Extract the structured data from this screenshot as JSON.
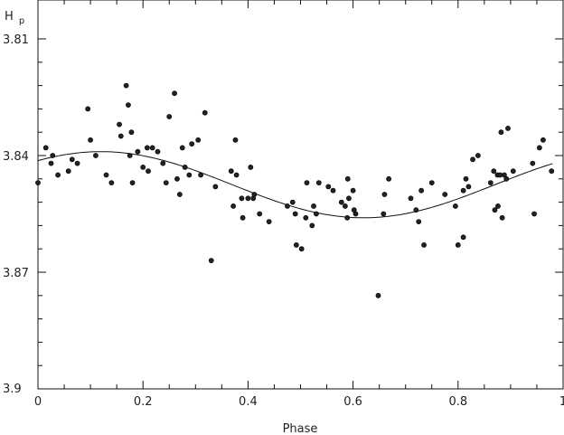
{
  "chart_data": {
    "type": "scatter",
    "title": "",
    "xlabel": "Phase",
    "ylabel": "H",
    "ylabel_sub": "p",
    "xlim": [
      0,
      1
    ],
    "ylim": [
      3.9,
      3.8
    ],
    "y_inverted": true,
    "grid": false,
    "xticks": [
      0,
      0.2,
      0.4,
      0.6,
      0.8,
      1
    ],
    "xtick_labels": [
      "0",
      "0.2",
      "0.4",
      "0.6",
      "0.8",
      "1"
    ],
    "yticks": [
      3.81,
      3.84,
      3.87,
      3.9
    ],
    "ytick_labels": [
      "3.81",
      "3.84",
      "3.87",
      "3.9"
    ],
    "fit_curve": {
      "kind": "sinusoid",
      "mean": 3.8475,
      "amplitude": 0.0085,
      "x_range": [
        0,
        0.98
      ],
      "max_brightness_phase": 0.12
    },
    "points": [
      [
        0.0,
        3.847
      ],
      [
        0.015,
        3.838
      ],
      [
        0.025,
        3.842
      ],
      [
        0.028,
        3.84
      ],
      [
        0.038,
        3.845
      ],
      [
        0.058,
        3.844
      ],
      [
        0.065,
        3.841
      ],
      [
        0.075,
        3.842
      ],
      [
        0.095,
        3.828
      ],
      [
        0.1,
        3.836
      ],
      [
        0.11,
        3.84
      ],
      [
        0.13,
        3.845
      ],
      [
        0.14,
        3.847
      ],
      [
        0.155,
        3.832
      ],
      [
        0.158,
        3.835
      ],
      [
        0.168,
        3.822
      ],
      [
        0.172,
        3.827
      ],
      [
        0.175,
        3.84
      ],
      [
        0.178,
        3.834
      ],
      [
        0.18,
        3.847
      ],
      [
        0.19,
        3.839
      ],
      [
        0.2,
        3.843
      ],
      [
        0.208,
        3.838
      ],
      [
        0.21,
        3.844
      ],
      [
        0.218,
        3.838
      ],
      [
        0.228,
        3.839
      ],
      [
        0.238,
        3.842
      ],
      [
        0.244,
        3.847
      ],
      [
        0.25,
        3.83
      ],
      [
        0.26,
        3.824
      ],
      [
        0.265,
        3.846
      ],
      [
        0.27,
        3.85
      ],
      [
        0.275,
        3.838
      ],
      [
        0.28,
        3.843
      ],
      [
        0.288,
        3.845
      ],
      [
        0.293,
        3.837
      ],
      [
        0.305,
        3.836
      ],
      [
        0.31,
        3.845
      ],
      [
        0.318,
        3.829
      ],
      [
        0.33,
        3.867
      ],
      [
        0.338,
        3.848
      ],
      [
        0.368,
        3.844
      ],
      [
        0.372,
        3.853
      ],
      [
        0.376,
        3.836
      ],
      [
        0.378,
        3.845
      ],
      [
        0.388,
        3.851
      ],
      [
        0.39,
        3.856
      ],
      [
        0.4,
        3.851
      ],
      [
        0.405,
        3.843
      ],
      [
        0.41,
        3.851
      ],
      [
        0.412,
        3.85
      ],
      [
        0.422,
        3.855
      ],
      [
        0.44,
        3.857
      ],
      [
        0.475,
        3.853
      ],
      [
        0.485,
        3.852
      ],
      [
        0.49,
        3.855
      ],
      [
        0.492,
        3.863
      ],
      [
        0.502,
        3.864
      ],
      [
        0.51,
        3.856
      ],
      [
        0.512,
        3.847
      ],
      [
        0.522,
        3.858
      ],
      [
        0.525,
        3.853
      ],
      [
        0.53,
        3.855
      ],
      [
        0.535,
        3.847
      ],
      [
        0.553,
        3.848
      ],
      [
        0.562,
        3.849
      ],
      [
        0.578,
        3.852
      ],
      [
        0.585,
        3.853
      ],
      [
        0.589,
        3.856
      ],
      [
        0.59,
        3.846
      ],
      [
        0.592,
        3.851
      ],
      [
        0.6,
        3.849
      ],
      [
        0.602,
        3.854
      ],
      [
        0.605,
        3.855
      ],
      [
        0.648,
        3.876
      ],
      [
        0.658,
        3.855
      ],
      [
        0.66,
        3.85
      ],
      [
        0.668,
        3.846
      ],
      [
        0.71,
        3.851
      ],
      [
        0.72,
        3.854
      ],
      [
        0.725,
        3.857
      ],
      [
        0.73,
        3.849
      ],
      [
        0.735,
        3.863
      ],
      [
        0.75,
        3.847
      ],
      [
        0.775,
        3.85
      ],
      [
        0.795,
        3.853
      ],
      [
        0.8,
        3.863
      ],
      [
        0.81,
        3.861
      ],
      [
        0.81,
        3.849
      ],
      [
        0.815,
        3.846
      ],
      [
        0.82,
        3.848
      ],
      [
        0.828,
        3.841
      ],
      [
        0.838,
        3.84
      ],
      [
        0.862,
        3.847
      ],
      [
        0.868,
        3.844
      ],
      [
        0.87,
        3.854
      ],
      [
        0.875,
        3.845
      ],
      [
        0.876,
        3.853
      ],
      [
        0.88,
        3.845
      ],
      [
        0.882,
        3.834
      ],
      [
        0.884,
        3.856
      ],
      [
        0.888,
        3.845
      ],
      [
        0.892,
        3.846
      ],
      [
        0.895,
        3.833
      ],
      [
        0.905,
        3.844
      ],
      [
        0.942,
        3.842
      ],
      [
        0.945,
        3.855
      ],
      [
        0.955,
        3.838
      ],
      [
        0.962,
        3.836
      ],
      [
        0.978,
        3.844
      ]
    ]
  }
}
